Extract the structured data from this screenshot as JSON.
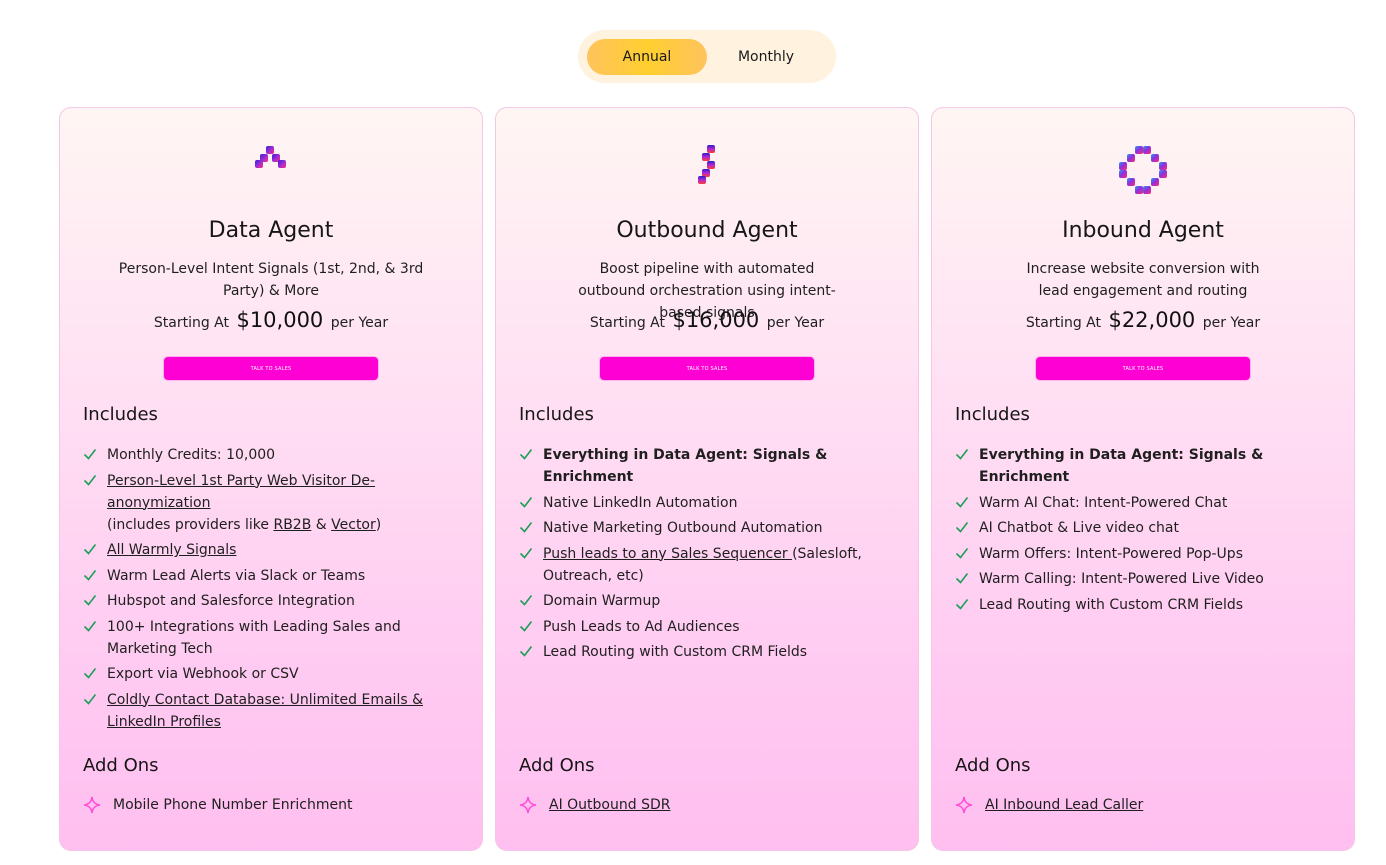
{
  "toggle": {
    "annual": "Annual",
    "monthly": "Monthly"
  },
  "colors": {
    "cta": "#ff00d4",
    "check": "#1e9e5a",
    "toggle_active": "#ffcf30",
    "spark": "#ff4fd8"
  },
  "cards": [
    {
      "title": "Data Agent",
      "description": "Person-Level Intent Signals (1st, 2nd, & 3rd Party) & More",
      "price_prefix": "Starting At",
      "price": "$10,000",
      "price_suffix": "per Year",
      "cta": "TALK TO SALES",
      "includes_heading": "Includes",
      "features": [
        {
          "text": "Monthly Credits: 10,000"
        },
        {
          "link": "Person-Level 1st Party Web Visitor De-anonymization",
          "rest_a": "(includes providers like ",
          "link_b": "RB2B",
          "mid": " & ",
          "link_c": "Vector",
          "end": ")"
        },
        {
          "link": "All Warmly Signals"
        },
        {
          "text": "Warm Lead Alerts via Slack or Teams"
        },
        {
          "text": "Hubspot and Salesforce Integration"
        },
        {
          "text": "100+ Integrations with Leading Sales and Marketing Tech"
        },
        {
          "text": "Export via Webhook or CSV"
        },
        {
          "link": "Coldly Contact Database: Unlimited Emails & LinkedIn Profiles"
        }
      ],
      "addons_heading": "Add Ons",
      "addon": "Mobile Phone Number Enrichment"
    },
    {
      "title": "Outbound Agent",
      "description": "Boost pipeline with automated outbound orchestration using intent-based signals",
      "price_prefix": "Starting At",
      "price": "$16,000",
      "price_suffix": "per Year",
      "cta": "TALK TO SALES",
      "includes_heading": "Includes",
      "features": [
        {
          "bold": "Everything in Data Agent: Signals & Enrichment"
        },
        {
          "text": "Native LinkedIn Automation"
        },
        {
          "text": "Native Marketing Outbound Automation"
        },
        {
          "link": "Push leads to any Sales Sequencer ",
          "rest": "(Salesloft, Outreach, etc)"
        },
        {
          "text": "Domain Warmup"
        },
        {
          "text": "Push Leads to Ad Audiences"
        },
        {
          "text": "Lead Routing with Custom CRM Fields"
        }
      ],
      "addons_heading": "Add Ons",
      "addon": "AI Outbound SDR"
    },
    {
      "title": "Inbound Agent",
      "description": "Increase website conversion with lead engagement and routing",
      "price_prefix": "Starting At",
      "price": "$22,000",
      "price_suffix": "per Year",
      "cta": "TALK TO SALES",
      "includes_heading": "Includes",
      "features": [
        {
          "bold": "Everything in Data Agent: Signals & Enrichment"
        },
        {
          "text": "Warm AI Chat: Intent-Powered Chat"
        },
        {
          "text": "AI Chatbot & Live video chat"
        },
        {
          "text": "Warm Offers: Intent-Powered Pop-Ups"
        },
        {
          "text": "Warm Calling: Intent-Powered Live Video"
        },
        {
          "text": "Lead Routing with Custom CRM Fields"
        }
      ],
      "addons_heading": "Add Ons",
      "addon": "AI Inbound Lead Caller"
    }
  ]
}
